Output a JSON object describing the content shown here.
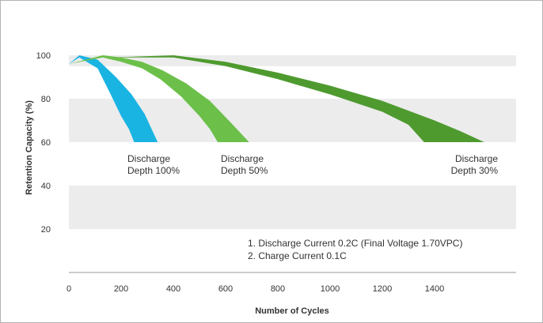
{
  "chart_data": {
    "type": "area",
    "xlabel": "Number of Cycles",
    "ylabel": "Retention Capacity (%)",
    "xlim": [
      0,
      1600
    ],
    "ylim": [
      0,
      100
    ],
    "xticks": [
      0,
      200,
      400,
      600,
      800,
      1000,
      1200,
      1400
    ],
    "yticks": [
      20,
      40,
      60,
      80,
      100
    ],
    "grid_bands": [
      [
        20,
        40
      ],
      [
        60,
        80
      ],
      [
        95,
        100
      ]
    ],
    "series": [
      {
        "name": "Discharge Depth 100%",
        "label_line1": "Discharge",
        "label_line2": "Depth 100%",
        "color": "#1ab4e3",
        "upper": [
          [
            0,
            96
          ],
          [
            40,
            100
          ],
          [
            110,
            98
          ],
          [
            180,
            90
          ],
          [
            240,
            82
          ],
          [
            290,
            73
          ],
          [
            340,
            60
          ]
        ],
        "lower": [
          [
            0,
            96
          ],
          [
            40,
            99
          ],
          [
            110,
            94
          ],
          [
            160,
            82
          ],
          [
            200,
            72
          ],
          [
            230,
            66
          ],
          [
            250,
            60
          ]
        ]
      },
      {
        "name": "Discharge Depth 50%",
        "label_line1": "Discharge",
        "label_line2": "Depth 50%",
        "color": "#6cc04a",
        "upper": [
          [
            0,
            96
          ],
          [
            130,
            100
          ],
          [
            200,
            99
          ],
          [
            280,
            97
          ],
          [
            360,
            93
          ],
          [
            450,
            87
          ],
          [
            540,
            79
          ],
          [
            620,
            69
          ],
          [
            690,
            60
          ]
        ],
        "lower": [
          [
            0,
            96
          ],
          [
            130,
            99
          ],
          [
            200,
            97
          ],
          [
            280,
            94
          ],
          [
            350,
            89
          ],
          [
            430,
            81
          ],
          [
            500,
            72
          ],
          [
            540,
            66
          ],
          [
            570,
            60
          ]
        ]
      },
      {
        "name": "Discharge Depth 30%",
        "label_line1": "Discharge",
        "label_line2": "Depth 30%",
        "color": "#4e9a2f",
        "upper": [
          [
            0,
            96
          ],
          [
            160,
            99
          ],
          [
            400,
            100
          ],
          [
            600,
            97
          ],
          [
            800,
            92
          ],
          [
            1000,
            86
          ],
          [
            1200,
            79
          ],
          [
            1400,
            70
          ],
          [
            1500,
            65
          ],
          [
            1590,
            60
          ]
        ],
        "lower": [
          [
            0,
            96
          ],
          [
            160,
            99
          ],
          [
            400,
            99
          ],
          [
            600,
            95
          ],
          [
            800,
            89
          ],
          [
            1000,
            82
          ],
          [
            1200,
            74
          ],
          [
            1300,
            68
          ],
          [
            1360,
            60
          ]
        ]
      }
    ],
    "notes": [
      "1. Discharge Current 0.2C (Final Voltage 1.70VPC)",
      "2. Charge Current 0.1C"
    ]
  }
}
